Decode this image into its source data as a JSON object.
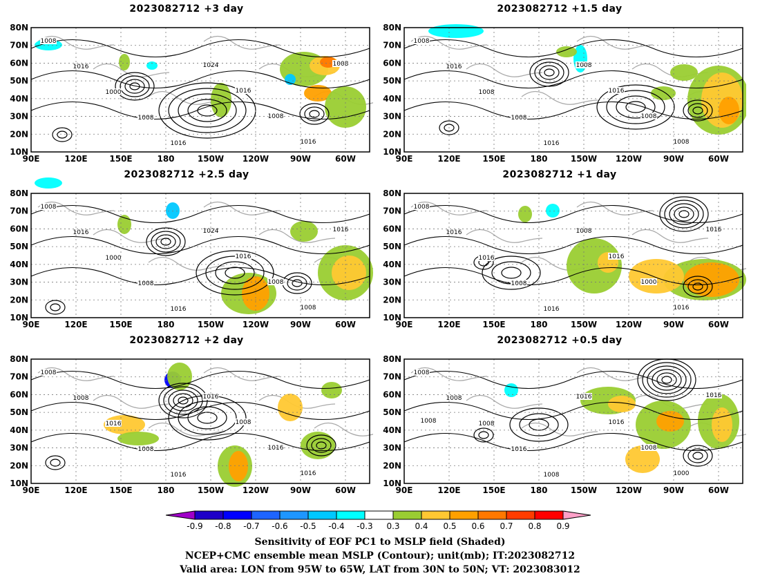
{
  "panels": [
    {
      "id": "p3",
      "title": "2023082712  +3 day",
      "isobars": [
        "1008",
        "1016",
        "1000",
        "1008",
        "1016",
        "1024",
        "1016",
        "1008",
        "1016",
        "1008"
      ]
    },
    {
      "id": "p15",
      "title": "2023082712  +1.5 day",
      "isobars": [
        "1008",
        "1016",
        "1008",
        "1008",
        "1016",
        "1008",
        "1016",
        "1008",
        "1008"
      ]
    },
    {
      "id": "p25",
      "title": "2023082712  +2.5 day",
      "isobars": [
        "1008",
        "1016",
        "1000",
        "1008",
        "1016",
        "1024",
        "1016",
        "1008",
        "1008",
        "1016"
      ]
    },
    {
      "id": "p1",
      "title": "2023082712  +1 day",
      "isobars": [
        "1008",
        "1016",
        "1016",
        "1008",
        "1016",
        "1008",
        "1016",
        "1000",
        "1016",
        "1016"
      ]
    },
    {
      "id": "p2",
      "title": "2023082712  +2 day",
      "isobars": [
        "1008",
        "1008",
        "1016",
        "1008",
        "1016",
        "1016",
        "1008",
        "1016",
        "1016"
      ]
    },
    {
      "id": "p05",
      "title": "2023082712  +0.5 day",
      "isobars": [
        "1008",
        "1008",
        "1008",
        "1016",
        "1008",
        "1016",
        "1016",
        "1008",
        "1000",
        "1016",
        "1008"
      ]
    }
  ],
  "axes": {
    "lat_labels": [
      "80N",
      "70N",
      "60N",
      "50N",
      "40N",
      "30N",
      "20N",
      "10N"
    ],
    "lon_labels": [
      "90E",
      "120E",
      "150E",
      "180",
      "150W",
      "120W",
      "90W",
      "60W"
    ]
  },
  "colorbar": {
    "ticks": [
      "-0.9",
      "-0.8",
      "-0.7",
      "-0.6",
      "-0.5",
      "-0.4",
      "-0.3",
      "0.3",
      "0.4",
      "0.5",
      "0.6",
      "0.7",
      "0.8",
      "0.9"
    ],
    "colors": [
      "#a000c8",
      "#1e00c8",
      "#0000ff",
      "#1e64ff",
      "#1e96ff",
      "#00c8ff",
      "#00ffff",
      "#ffffff",
      "#9acd32",
      "#ffc832",
      "#ffa000",
      "#ff7800",
      "#ff3c00",
      "#ff0000",
      "#ffa0c8"
    ]
  },
  "captions": [
    "Sensitivity of EOF PC1 to MSLP field (Shaded)",
    "NCEP+CMC ensemble mean MSLP (Contour); unit(mb); IT:2023082712",
    "Valid area: LON from 95W to 65W, LAT from 30N to 50N; VT: 2023083012"
  ]
}
